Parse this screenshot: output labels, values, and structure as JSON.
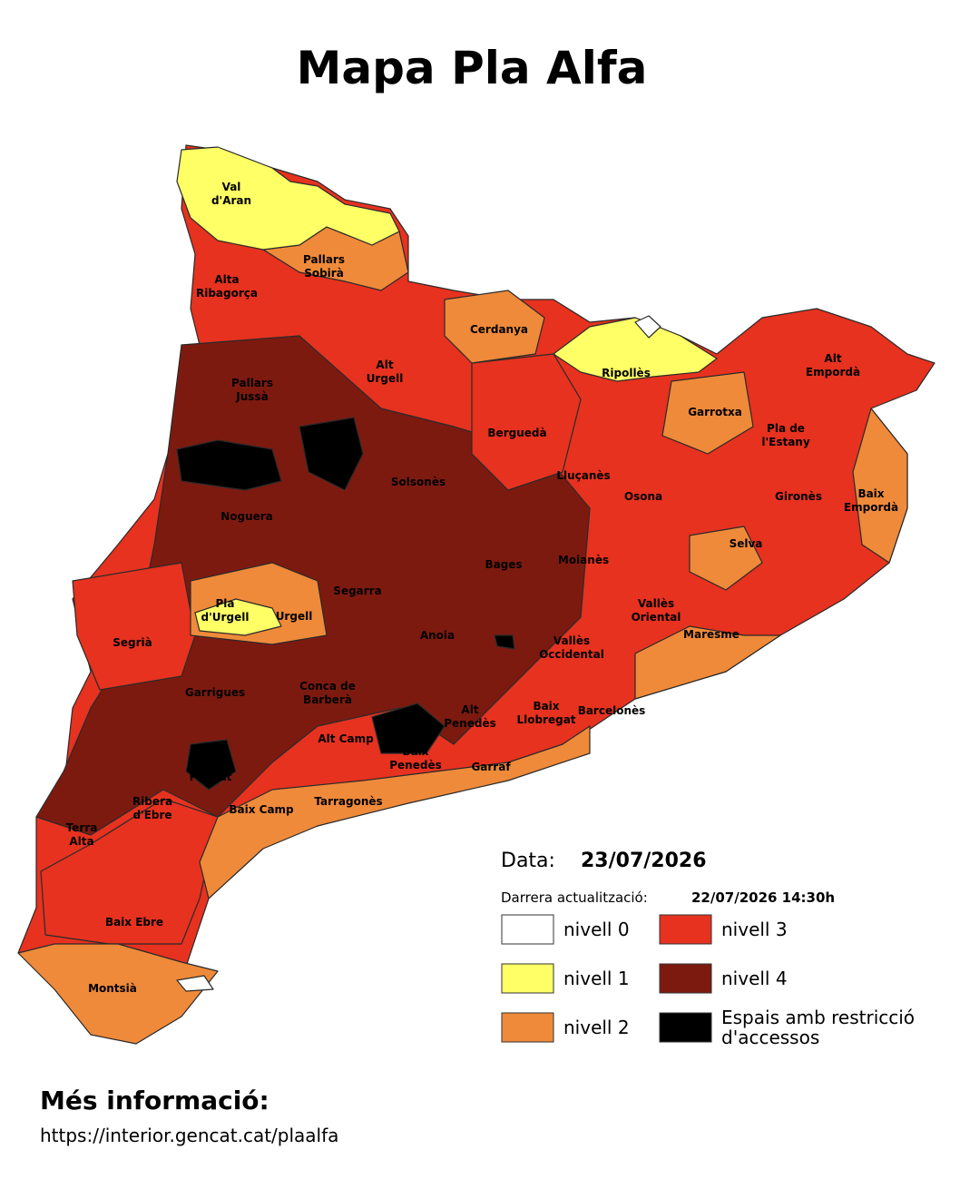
{
  "title": "Mapa Pla Alfa",
  "regions": [
    {
      "lines": [
        "Val",
        "d'Aran"
      ]
    },
    {
      "lines": [
        "Pallars",
        "Sobirà"
      ]
    },
    {
      "lines": [
        "Alta",
        "Ribagorça"
      ]
    },
    {
      "lines": [
        "Cerdanya"
      ]
    },
    {
      "lines": [
        "Pallars",
        "Jussà"
      ]
    },
    {
      "lines": [
        "Alt",
        "Urgell"
      ]
    },
    {
      "lines": [
        "Ripollès"
      ]
    },
    {
      "lines": [
        "Alt",
        "Empordà"
      ]
    },
    {
      "lines": [
        "Garrotxa"
      ]
    },
    {
      "lines": [
        "Berguedà"
      ]
    },
    {
      "lines": [
        "Pla de",
        "l'Estany"
      ]
    },
    {
      "lines": [
        "Solsonès"
      ]
    },
    {
      "lines": [
        "Lluçanès"
      ]
    },
    {
      "lines": [
        "Osona"
      ]
    },
    {
      "lines": [
        "Gironès"
      ]
    },
    {
      "lines": [
        "Baix",
        "Empordà"
      ]
    },
    {
      "lines": [
        "Noguera"
      ]
    },
    {
      "lines": [
        "Selva"
      ]
    },
    {
      "lines": [
        "Bages"
      ]
    },
    {
      "lines": [
        "Moianès"
      ]
    },
    {
      "lines": [
        "Segarra"
      ]
    },
    {
      "lines": [
        "Pla",
        "d'Urgell"
      ]
    },
    {
      "lines": [
        "Urgell"
      ]
    },
    {
      "lines": [
        "Vallès",
        "Oriental"
      ]
    },
    {
      "lines": [
        "Maresme"
      ]
    },
    {
      "lines": [
        "Segrià"
      ]
    },
    {
      "lines": [
        "Anoia"
      ]
    },
    {
      "lines": [
        "Vallès",
        "Occidental"
      ]
    },
    {
      "lines": [
        "Garrigues"
      ]
    },
    {
      "lines": [
        "Conca de",
        "Barberà"
      ]
    },
    {
      "lines": [
        "Alt",
        "Penedès"
      ]
    },
    {
      "lines": [
        "Baix",
        "Llobregat"
      ]
    },
    {
      "lines": [
        "Barcelonès"
      ]
    },
    {
      "lines": [
        "Alt Camp"
      ]
    },
    {
      "lines": [
        "Baix",
        "Penedès"
      ]
    },
    {
      "lines": [
        "Priorat"
      ]
    },
    {
      "lines": [
        "Garraf"
      ]
    },
    {
      "lines": [
        "Ribera",
        "d'Ebre"
      ]
    },
    {
      "lines": [
        "Tarragonès"
      ]
    },
    {
      "lines": [
        "Baix Camp"
      ]
    },
    {
      "lines": [
        "Terra",
        "Alta"
      ]
    },
    {
      "lines": [
        "Baix Ebre"
      ]
    },
    {
      "lines": [
        "Montsià"
      ]
    }
  ],
  "date": {
    "label": "Data:",
    "value": "23/07/2026"
  },
  "updated": {
    "label": "Darrera actualització:",
    "value": "22/07/2026 14:30h"
  },
  "legend": [
    {
      "lines": [
        "nivell 0"
      ],
      "color": "#ffffff"
    },
    {
      "lines": [
        "nivell 1"
      ],
      "color": "#ffff66"
    },
    {
      "lines": [
        "nivell 2"
      ],
      "color": "#ef8a3a"
    },
    {
      "lines": [
        "nivell 3"
      ],
      "color": "#e6321f"
    },
    {
      "lines": [
        "nivell 4"
      ],
      "color": "#7d1a10"
    },
    {
      "lines": [
        "Espais amb restricció",
        "d'accessos"
      ],
      "color": "#000000"
    }
  ],
  "footer": {
    "title": "Més informació:",
    "url": "https://interior.gencat.cat/plaalfa"
  }
}
